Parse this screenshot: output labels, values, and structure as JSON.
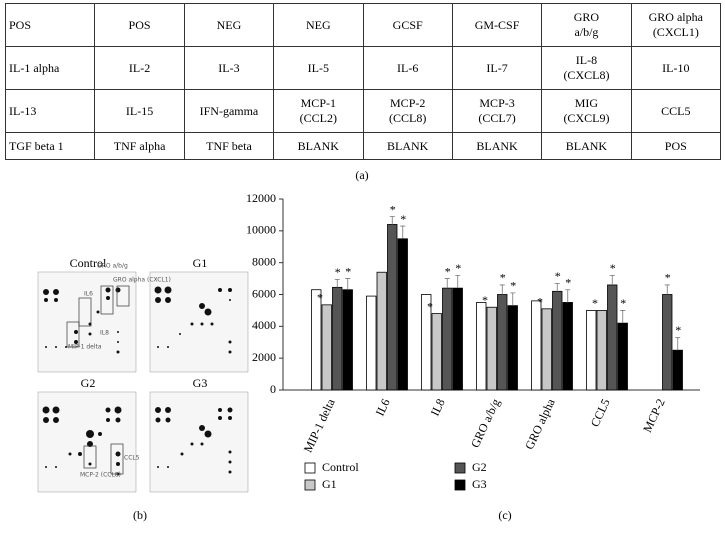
{
  "table": {
    "rows": [
      [
        "POS",
        "POS",
        "NEG",
        "NEG",
        "GCSF",
        "GM-CSF",
        "GRO\na/b/g",
        "GRO alpha\n(CXCL1)"
      ],
      [
        "IL-1 alpha",
        "IL-2",
        "IL-3",
        "IL-5",
        "IL-6",
        "IL-7",
        "IL-8\n(CXCL8)",
        "IL-10"
      ],
      [
        "IL-13",
        "IL-15",
        "IFN-gamma",
        "MCP-1\n(CCL2)",
        "MCP-2\n(CCL8)",
        "MCP-3\n(CCL7)",
        "MIG\n(CXCL9)",
        "CCL5"
      ],
      [
        "TGF beta 1",
        "TNF alpha",
        "TNF beta",
        "BLANK",
        "BLANK",
        "BLANK",
        "BLANK",
        "POS"
      ]
    ]
  },
  "captions": [
    "(a)",
    "(b)",
    "(c)"
  ],
  "blots": {
    "panels": [
      "Control",
      "G1",
      "G2",
      "G3"
    ],
    "labels": [
      "GRO a/b/g",
      "GRO alpha (CXCL1)",
      "IL6",
      "IL8",
      "MIP-1 delta",
      "CCL5",
      "MCP-2 (CCL8)"
    ]
  },
  "chart_data": {
    "type": "bar",
    "categories": [
      "MIP-1 delta",
      "IL6",
      "IL8",
      "GRO a/b/g",
      "GRO alpha",
      "CCL5",
      "MCP-2"
    ],
    "ylim": [
      0,
      12000
    ],
    "yticks": [
      0,
      2000,
      4000,
      6000,
      8000,
      10000,
      12000
    ],
    "series": [
      {
        "name": "Control",
        "color": "#ffffff",
        "values": [
          6300,
          5900,
          6000,
          5500,
          5600,
          5000,
          null
        ],
        "annotations": [
          null,
          null,
          null,
          null,
          null,
          null,
          null
        ]
      },
      {
        "name": "G1",
        "color": "#c8c8c8",
        "values": [
          5350,
          7400,
          4800,
          5200,
          5100,
          5000,
          null
        ],
        "annotations": [
          "*",
          null,
          "*",
          "*",
          "*",
          "*",
          null
        ]
      },
      {
        "name": "G2",
        "color": "#555555",
        "values": [
          6450,
          10400,
          6400,
          6000,
          6200,
          6600,
          6000
        ],
        "errors": [
          500,
          500,
          600,
          600,
          500,
          600,
          600
        ],
        "annotations": [
          "*",
          "*",
          "*",
          "*",
          "*",
          "*",
          "*"
        ]
      },
      {
        "name": "G3",
        "color": "#000000",
        "values": [
          6300,
          9500,
          6400,
          5300,
          5500,
          4200,
          2500
        ],
        "errors": [
          700,
          800,
          800,
          800,
          800,
          800,
          800
        ],
        "annotations": [
          "*",
          "*",
          "*",
          "*",
          "*",
          "*",
          "*"
        ]
      }
    ]
  }
}
